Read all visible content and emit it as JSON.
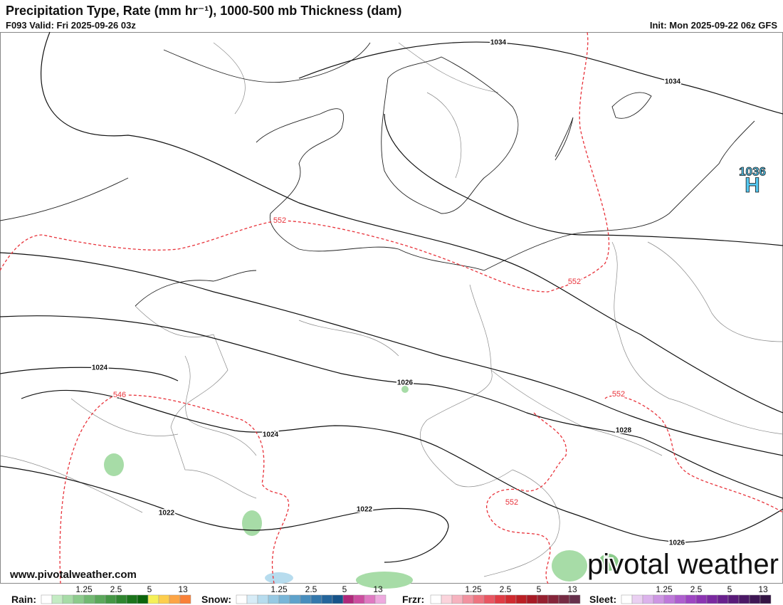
{
  "header": {
    "title": "Precipitation Type, Rate (mm hr⁻¹), 1000-500 mb Thickness (dam)",
    "valid": "F093 Valid: Fri 2025-09-26 03z",
    "init": "Init: Mon 2025-09-22 06z GFS"
  },
  "map": {
    "pressure_labels": [
      "1034",
      "1034",
      "1024",
      "1026",
      "1024",
      "1028",
      "1022",
      "1022",
      "1026"
    ],
    "high": {
      "value": "1036",
      "symbol": "H"
    },
    "thickness_labels": [
      "552",
      "552",
      "552",
      "552",
      "546"
    ]
  },
  "watermark": {
    "url": "www.pivotalweather.com",
    "logo": "pivotal weather"
  },
  "legend": [
    {
      "label": "Rain:",
      "ticks": [
        1.25,
        2.5,
        5,
        13
      ],
      "colors": [
        "#ffffff",
        "#c4ecc4",
        "#a7dca7",
        "#8ccb8c",
        "#72b972",
        "#5ba85b",
        "#449644",
        "#2f852f",
        "#1b741b",
        "#0b640b",
        "#f5f057",
        "#fdce4d",
        "#fca545",
        "#f98038"
      ]
    },
    {
      "label": "Snow:",
      "ticks": [
        1.25,
        2.5,
        5,
        13
      ],
      "colors": [
        "#ffffff",
        "#d7ecf7",
        "#b7dcee",
        "#97c9e3",
        "#79b6d8",
        "#5ea2cb",
        "#478dbd",
        "#3478ac",
        "#24659b",
        "#165389",
        "#b0287a",
        "#cc4d9f",
        "#e079c2",
        "#eeaadf"
      ]
    },
    {
      "label": "Frzr:",
      "ticks": [
        1.25,
        2.5,
        5,
        13
      ],
      "colors": [
        "#ffffff",
        "#fbd4dc",
        "#f6b3bf",
        "#f292a0",
        "#ee7480",
        "#e95662",
        "#e03b44",
        "#d02a2f",
        "#bb1f24",
        "#a71a25",
        "#962030",
        "#85253a",
        "#752b43",
        "#66304b"
      ]
    },
    {
      "label": "Sleet:",
      "ticks": [
        1.25,
        2.5,
        5,
        13
      ],
      "colors": [
        "#ffffff",
        "#ead0f2",
        "#dcb3ec",
        "#cd96e3",
        "#be79da",
        "#ae5ecf",
        "#9d45c2",
        "#8c34b2",
        "#7a29a0",
        "#69208d",
        "#591b79",
        "#4b1866",
        "#3e1654",
        "#331443"
      ]
    }
  ]
}
